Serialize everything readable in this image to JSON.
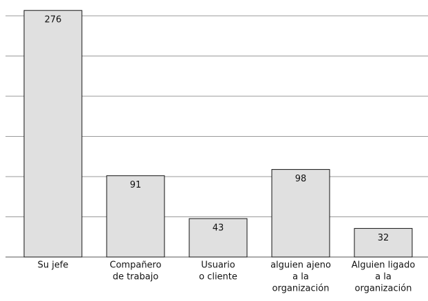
{
  "chart_data": {
    "type": "bar",
    "categories": [
      [
        "Su jefe"
      ],
      [
        "Compañero",
        "de trabajo"
      ],
      [
        "Usuario",
        "o cliente"
      ],
      [
        "alguien ajeno",
        "a la",
        "organización"
      ],
      [
        "Alguien ligado",
        "a la",
        "organización"
      ]
    ],
    "values": [
      276,
      91,
      43,
      98,
      32
    ],
    "color": "#e0e0e0",
    "ylim": [
      0,
      280
    ],
    "yticks": [
      0,
      45,
      90,
      135,
      180,
      225,
      270
    ],
    "grid": true
  }
}
